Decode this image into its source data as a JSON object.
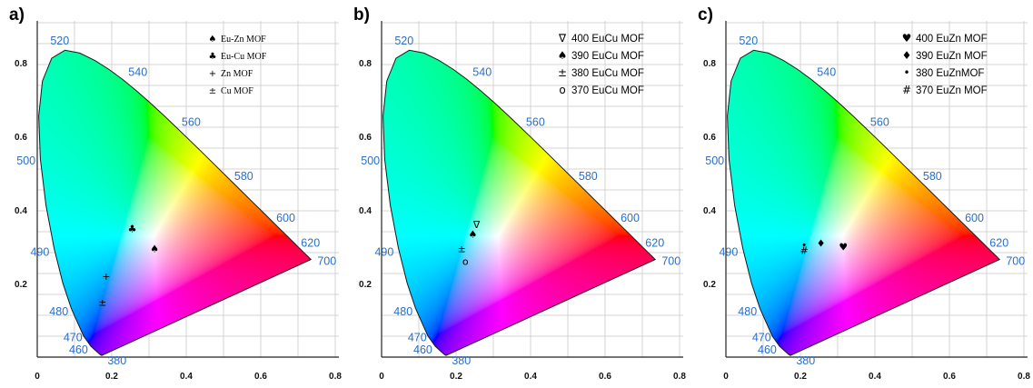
{
  "chart_data": [
    {
      "type": "scatter",
      "panel_label": "a)",
      "x_ticks": [
        "0",
        "0.2",
        "0.4",
        "0.6",
        "0.8"
      ],
      "y_ticks": [
        "0.2",
        "0.4",
        "0.6",
        "0.8"
      ],
      "xlim": [
        0,
        0.8
      ],
      "ylim": [
        0,
        0.9
      ],
      "grid": true,
      "legend_placement": "top-right",
      "legend_font": "serif",
      "wavelength_labels": [
        {
          "text": "520",
          "x": 0.074,
          "y": 0.834
        },
        {
          "text": "540",
          "x": 0.23,
          "y": 0.754
        },
        {
          "text": "560",
          "x": 0.373,
          "y": 0.624
        },
        {
          "text": "580",
          "x": 0.512,
          "y": 0.487
        },
        {
          "text": "600",
          "x": 0.627,
          "y": 0.373
        },
        {
          "text": "620",
          "x": 0.691,
          "y": 0.308
        },
        {
          "text": "700",
          "x": 0.735,
          "y": 0.265
        },
        {
          "text": "500",
          "x": 0.008,
          "y": 0.538
        },
        {
          "text": "490",
          "x": 0.045,
          "y": 0.295
        },
        {
          "text": "480",
          "x": 0.091,
          "y": 0.133
        },
        {
          "text": "470",
          "x": 0.124,
          "y": 0.058
        },
        {
          "text": "460",
          "x": 0.144,
          "y": 0.03
        },
        {
          "text": "380",
          "x": 0.174,
          "y": 0.005
        }
      ],
      "series": [
        {
          "name": "Eu-Zn MOF",
          "symbol": "♠",
          "points": [
            [
              0.315,
              0.295
            ]
          ]
        },
        {
          "name": "Eu-Cu MOF",
          "symbol": "♣",
          "points": [
            [
              0.255,
              0.35
            ]
          ]
        },
        {
          "name": "Zn MOF",
          "symbol": "+",
          "points": [
            [
              0.185,
              0.22
            ]
          ]
        },
        {
          "name": "Cu MOF",
          "symbol": "±",
          "points": [
            [
              0.175,
              0.15
            ]
          ]
        }
      ]
    },
    {
      "type": "scatter",
      "panel_label": "b)",
      "x_ticks": [
        "0",
        "0.2",
        "0.4",
        "0.6",
        "0.8"
      ],
      "y_ticks": [
        "0.2",
        "0.4",
        "0.6",
        "0.8"
      ],
      "xlim": [
        0,
        0.8
      ],
      "ylim": [
        0,
        0.9
      ],
      "grid": true,
      "legend_placement": "top-right",
      "legend_font": "sans",
      "wavelength_labels": [
        {
          "text": "520",
          "x": 0.074,
          "y": 0.834
        },
        {
          "text": "540",
          "x": 0.23,
          "y": 0.754
        },
        {
          "text": "560",
          "x": 0.373,
          "y": 0.624
        },
        {
          "text": "580",
          "x": 0.512,
          "y": 0.487
        },
        {
          "text": "600",
          "x": 0.627,
          "y": 0.373
        },
        {
          "text": "620",
          "x": 0.691,
          "y": 0.308
        },
        {
          "text": "700",
          "x": 0.735,
          "y": 0.265
        },
        {
          "text": "500",
          "x": 0.008,
          "y": 0.538
        },
        {
          "text": "490",
          "x": 0.045,
          "y": 0.295
        },
        {
          "text": "480",
          "x": 0.091,
          "y": 0.133
        },
        {
          "text": "470",
          "x": 0.124,
          "y": 0.058
        },
        {
          "text": "460",
          "x": 0.144,
          "y": 0.03
        },
        {
          "text": "380",
          "x": 0.174,
          "y": 0.005
        }
      ],
      "series": [
        {
          "name": "400 EuCu MOF",
          "symbol": "∇",
          "points": [
            [
              0.255,
              0.36
            ]
          ]
        },
        {
          "name": "390 EuCu MOF",
          "symbol": "♠",
          "points": [
            [
              0.245,
              0.335
            ]
          ]
        },
        {
          "name": "380 EuCu MOF",
          "symbol": "±",
          "points": [
            [
              0.215,
              0.295
            ]
          ]
        },
        {
          "name": "370 EuCu MOF",
          "symbol": "o",
          "points": [
            [
              0.225,
              0.26
            ]
          ]
        }
      ]
    },
    {
      "type": "scatter",
      "panel_label": "c)",
      "x_ticks": [
        "0",
        "0.2",
        "0.4",
        "0.6",
        "0.8"
      ],
      "y_ticks": [
        "0.2",
        "0.4",
        "0.6",
        "0.8"
      ],
      "xlim": [
        0,
        0.8
      ],
      "ylim": [
        0,
        0.9
      ],
      "grid": true,
      "legend_placement": "top-right",
      "legend_font": "sans",
      "wavelength_labels": [
        {
          "text": "520",
          "x": 0.074,
          "y": 0.834
        },
        {
          "text": "540",
          "x": 0.23,
          "y": 0.754
        },
        {
          "text": "560",
          "x": 0.373,
          "y": 0.624
        },
        {
          "text": "580",
          "x": 0.512,
          "y": 0.487
        },
        {
          "text": "600",
          "x": 0.627,
          "y": 0.373
        },
        {
          "text": "620",
          "x": 0.691,
          "y": 0.308
        },
        {
          "text": "700",
          "x": 0.735,
          "y": 0.265
        },
        {
          "text": "500",
          "x": 0.008,
          "y": 0.538
        },
        {
          "text": "490",
          "x": 0.045,
          "y": 0.295
        },
        {
          "text": "480",
          "x": 0.091,
          "y": 0.133
        },
        {
          "text": "470",
          "x": 0.124,
          "y": 0.058
        },
        {
          "text": "460",
          "x": 0.144,
          "y": 0.03
        },
        {
          "text": "380",
          "x": 0.174,
          "y": 0.005
        }
      ],
      "series": [
        {
          "name": "400 EuZn MOF",
          "symbol": "♥",
          "points": [
            [
              0.315,
              0.3
            ]
          ]
        },
        {
          "name": "390 EuZn MOF",
          "symbol": "♦",
          "points": [
            [
              0.255,
              0.31
            ]
          ]
        },
        {
          "name": "380 EuZnMOF",
          "symbol": "•",
          "points": [
            [
              0.21,
              0.305
            ]
          ]
        },
        {
          "name": "370 EuZn MOF",
          "symbol": "#",
          "points": [
            [
              0.21,
              0.29
            ]
          ]
        }
      ]
    }
  ]
}
